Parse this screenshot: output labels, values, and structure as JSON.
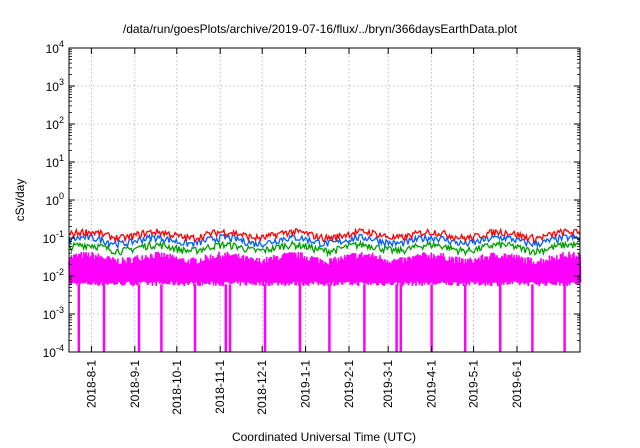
{
  "chart_data": {
    "type": "line",
    "title": "/data/run/goesPlots/archive/2019-07-16/flux/../bryn/366daysEarthData.plot",
    "xlabel": "Coordinated Universal Time (UTC)",
    "ylabel": "cSv/day",
    "y_scale": "log",
    "ylim": [
      0.0001,
      10000
    ],
    "y_ticks": [
      {
        "value": 0.0001,
        "base": "10",
        "exp": "-4"
      },
      {
        "value": 0.001,
        "base": "10",
        "exp": "-3"
      },
      {
        "value": 0.01,
        "base": "10",
        "exp": "-2"
      },
      {
        "value": 0.1,
        "base": "10",
        "exp": "-1"
      },
      {
        "value": 1,
        "base": "10",
        "exp": "0"
      },
      {
        "value": 10,
        "base": "10",
        "exp": "1"
      },
      {
        "value": 100,
        "base": "10",
        "exp": "2"
      },
      {
        "value": 1000,
        "base": "10",
        "exp": "3"
      },
      {
        "value": 10000,
        "base": "10",
        "exp": "4"
      }
    ],
    "xlim": [
      "2018-07-16",
      "2019-07-16"
    ],
    "x_tick_labels": [
      "2018-8-1",
      "2018-9-1",
      "2018-10-1",
      "2018-11-1",
      "2018-12-1",
      "2019-1-1",
      "2019-2-1",
      "2019-3-1",
      "2019-4-1",
      "2019-5-1",
      "2019-6-1"
    ],
    "x_tick_dates": [
      "2018-08-01",
      "2018-09-01",
      "2018-10-01",
      "2018-11-01",
      "2018-12-01",
      "2019-01-01",
      "2019-02-01",
      "2019-03-01",
      "2019-04-01",
      "2019-05-01",
      "2019-06-01"
    ],
    "grid": true,
    "series": [
      {
        "color": "#ff0000",
        "typical_value": 0.12
      },
      {
        "color": "#0060ff",
        "typical_value": 0.085
      },
      {
        "color": "#00a000",
        "typical_value": 0.055
      },
      {
        "color": "#ff00ff",
        "typical_value": 0.03,
        "min_value": 0.006,
        "dropout_min": 0.0001,
        "dropout_dates": [
          "2018-07-23",
          "2018-08-10",
          "2018-09-04",
          "2018-09-20",
          "2018-10-14",
          "2018-11-05",
          "2018-11-08",
          "2018-12-03",
          "2018-12-28",
          "2019-01-18",
          "2019-02-12",
          "2019-03-07",
          "2019-03-10",
          "2019-04-01",
          "2019-04-25",
          "2019-05-20",
          "2019-06-12",
          "2019-07-05"
        ]
      }
    ]
  }
}
